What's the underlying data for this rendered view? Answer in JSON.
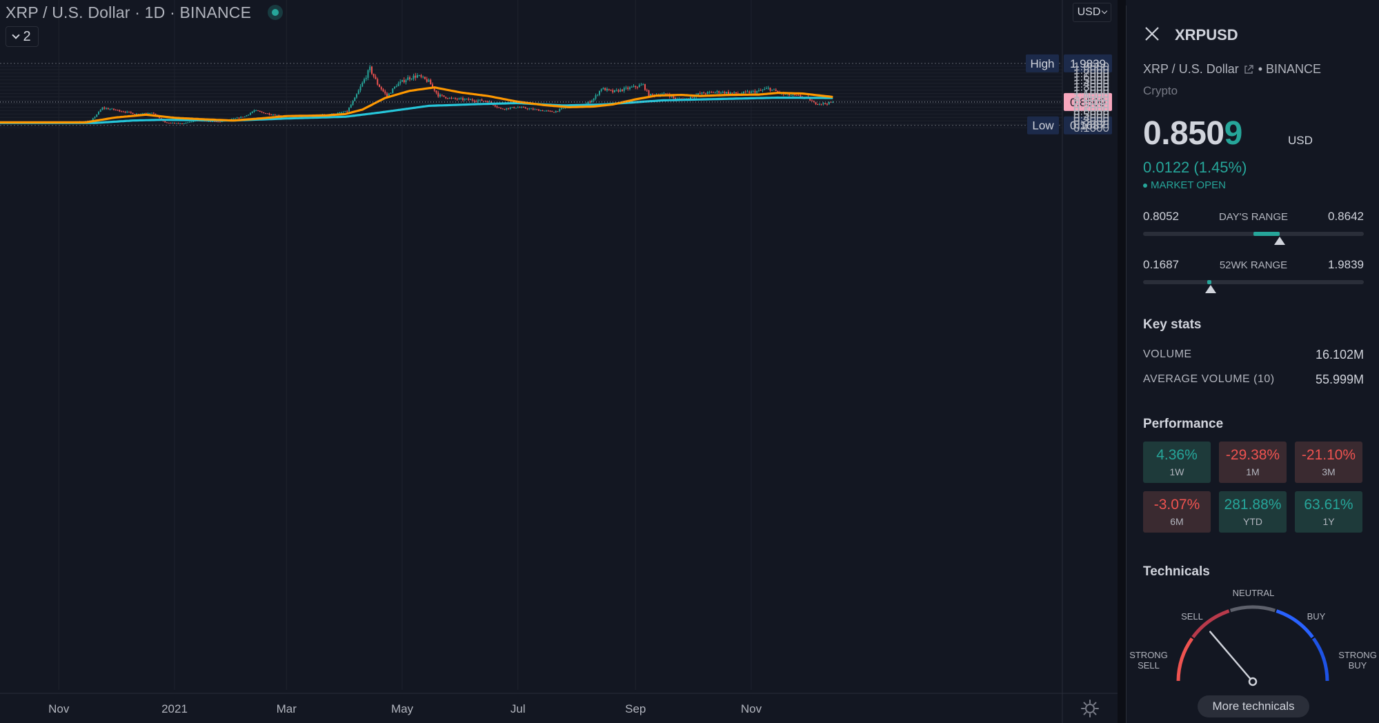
{
  "chart_header": {
    "title": "XRP / U.S. Dollar · 1D · BINANCE",
    "indicator_count": "2",
    "currency": "USD",
    "status_color": "#26a69a"
  },
  "colors": {
    "up": "#26a69a",
    "down": "#ef5350",
    "ma_fast": "#ff9800",
    "ma_slow": "#26c6da",
    "grid": "#1e222d",
    "background": "#131722"
  },
  "chart_data": {
    "type": "candlestick",
    "symbol": "XRPUSD",
    "interval": "1D",
    "y_axis": {
      "min": 0.1,
      "max": 1.9,
      "step": 0.1,
      "ticks": [
        "1.9000",
        "1.8000",
        "1.7000",
        "1.6000",
        "1.5000",
        "1.4000",
        "1.3000",
        "1.2000",
        "1.1000",
        "1.0000",
        "0.9000",
        "0.8000",
        "0.7000",
        "0.6000",
        "0.5000",
        "0.4000",
        "0.3000",
        "0.2000",
        "0.1000"
      ]
    },
    "x_axis": {
      "ticks": [
        {
          "label": "Nov",
          "date": "2020-11-01"
        },
        {
          "label": "2021",
          "date": "2021-01-01"
        },
        {
          "label": "Mar",
          "date": "2021-03-01"
        },
        {
          "label": "May",
          "date": "2021-05-01"
        },
        {
          "label": "Jul",
          "date": "2021-07-01"
        },
        {
          "label": "Sep",
          "date": "2021-09-01"
        },
        {
          "label": "Nov",
          "date": "2021-11-01"
        }
      ]
    },
    "high": {
      "label": "High",
      "value": "1.9839"
    },
    "low": {
      "label": "Low",
      "value": "0.1687"
    },
    "last": {
      "value": "0.8509"
    },
    "price_anchors": [
      {
        "date": "2020-10-01",
        "close": 0.245
      },
      {
        "date": "2020-10-20",
        "close": 0.25
      },
      {
        "date": "2020-11-05",
        "close": 0.26
      },
      {
        "date": "2020-11-18",
        "close": 0.3
      },
      {
        "date": "2020-11-24",
        "close": 0.68
      },
      {
        "date": "2020-12-01",
        "close": 0.62
      },
      {
        "date": "2020-12-12",
        "close": 0.5
      },
      {
        "date": "2020-12-20",
        "close": 0.55
      },
      {
        "date": "2020-12-27",
        "close": 0.25
      },
      {
        "date": "2021-01-05",
        "close": 0.22
      },
      {
        "date": "2021-01-12",
        "close": 0.3
      },
      {
        "date": "2021-01-25",
        "close": 0.27
      },
      {
        "date": "2021-02-01",
        "close": 0.36
      },
      {
        "date": "2021-02-07",
        "close": 0.43
      },
      {
        "date": "2021-02-12",
        "close": 0.6
      },
      {
        "date": "2021-02-20",
        "close": 0.5
      },
      {
        "date": "2021-02-28",
        "close": 0.43
      },
      {
        "date": "2021-03-15",
        "close": 0.45
      },
      {
        "date": "2021-03-28",
        "close": 0.52
      },
      {
        "date": "2021-04-02",
        "close": 0.58
      },
      {
        "date": "2021-04-06",
        "close": 0.95
      },
      {
        "date": "2021-04-10",
        "close": 1.4
      },
      {
        "date": "2021-04-14",
        "close": 1.83
      },
      {
        "date": "2021-04-18",
        "close": 1.38
      },
      {
        "date": "2021-04-23",
        "close": 1.02
      },
      {
        "date": "2021-04-28",
        "close": 1.35
      },
      {
        "date": "2021-05-04",
        "close": 1.55
      },
      {
        "date": "2021-05-09",
        "close": 1.62
      },
      {
        "date": "2021-05-15",
        "close": 1.45
      },
      {
        "date": "2021-05-20",
        "close": 1.05
      },
      {
        "date": "2021-05-27",
        "close": 0.95
      },
      {
        "date": "2021-06-05",
        "close": 0.92
      },
      {
        "date": "2021-06-15",
        "close": 0.88
      },
      {
        "date": "2021-06-22",
        "close": 0.65
      },
      {
        "date": "2021-07-01",
        "close": 0.7
      },
      {
        "date": "2021-07-10",
        "close": 0.63
      },
      {
        "date": "2021-07-20",
        "close": 0.56
      },
      {
        "date": "2021-07-28",
        "close": 0.73
      },
      {
        "date": "2021-08-05",
        "close": 0.76
      },
      {
        "date": "2021-08-10",
        "close": 0.95
      },
      {
        "date": "2021-08-14",
        "close": 1.25
      },
      {
        "date": "2021-08-20",
        "close": 1.15
      },
      {
        "date": "2021-08-28",
        "close": 1.25
      },
      {
        "date": "2021-09-05",
        "close": 1.35
      },
      {
        "date": "2021-09-08",
        "close": 1.05
      },
      {
        "date": "2021-09-18",
        "close": 1.08
      },
      {
        "date": "2021-09-22",
        "close": 0.93
      },
      {
        "date": "2021-09-28",
        "close": 0.95
      },
      {
        "date": "2021-10-05",
        "close": 1.1
      },
      {
        "date": "2021-10-15",
        "close": 1.15
      },
      {
        "date": "2021-10-25",
        "close": 1.1
      },
      {
        "date": "2021-11-05",
        "close": 1.17
      },
      {
        "date": "2021-11-10",
        "close": 1.25
      },
      {
        "date": "2021-11-18",
        "close": 1.08
      },
      {
        "date": "2021-11-26",
        "close": 1.02
      },
      {
        "date": "2021-12-01",
        "close": 0.96
      },
      {
        "date": "2021-12-04",
        "close": 0.82
      },
      {
        "date": "2021-12-10",
        "close": 0.8
      },
      {
        "date": "2021-12-14",
        "close": 0.8509
      }
    ],
    "ma_fast_anchors": [
      {
        "date": "2020-10-01",
        "value": 0.255
      },
      {
        "date": "2020-11-15",
        "value": 0.255
      },
      {
        "date": "2020-12-01",
        "value": 0.4
      },
      {
        "date": "2020-12-17",
        "value": 0.48
      },
      {
        "date": "2021-01-01",
        "value": 0.39
      },
      {
        "date": "2021-01-15",
        "value": 0.35
      },
      {
        "date": "2021-02-01",
        "value": 0.31
      },
      {
        "date": "2021-02-15",
        "value": 0.37
      },
      {
        "date": "2021-03-01",
        "value": 0.44
      },
      {
        "date": "2021-03-22",
        "value": 0.46
      },
      {
        "date": "2021-04-01",
        "value": 0.5
      },
      {
        "date": "2021-04-10",
        "value": 0.63
      },
      {
        "date": "2021-04-22",
        "value": 0.97
      },
      {
        "date": "2021-05-05",
        "value": 1.18
      },
      {
        "date": "2021-05-18",
        "value": 1.28
      },
      {
        "date": "2021-06-01",
        "value": 1.13
      },
      {
        "date": "2021-06-15",
        "value": 1.03
      },
      {
        "date": "2021-07-01",
        "value": 0.86
      },
      {
        "date": "2021-07-15",
        "value": 0.76
      },
      {
        "date": "2021-07-28",
        "value": 0.7
      },
      {
        "date": "2021-08-10",
        "value": 0.72
      },
      {
        "date": "2021-08-20",
        "value": 0.78
      },
      {
        "date": "2021-09-01",
        "value": 0.93
      },
      {
        "date": "2021-09-12",
        "value": 1.04
      },
      {
        "date": "2021-09-25",
        "value": 1.06
      },
      {
        "date": "2021-10-05",
        "value": 1.03
      },
      {
        "date": "2021-10-20",
        "value": 1.06
      },
      {
        "date": "2021-11-05",
        "value": 1.07
      },
      {
        "date": "2021-11-15",
        "value": 1.12
      },
      {
        "date": "2021-11-28",
        "value": 1.1
      },
      {
        "date": "2021-12-14",
        "value": 1.0
      }
    ],
    "ma_slow_anchors": [
      {
        "date": "2020-10-01",
        "value": 0.24
      },
      {
        "date": "2020-11-20",
        "value": 0.24
      },
      {
        "date": "2020-12-10",
        "value": 0.31
      },
      {
        "date": "2020-12-25",
        "value": 0.33
      },
      {
        "date": "2021-02-01",
        "value": 0.31
      },
      {
        "date": "2021-03-01",
        "value": 0.37
      },
      {
        "date": "2021-04-01",
        "value": 0.42
      },
      {
        "date": "2021-04-20",
        "value": 0.55
      },
      {
        "date": "2021-05-15",
        "value": 0.74
      },
      {
        "date": "2021-06-10",
        "value": 0.79
      },
      {
        "date": "2021-07-01",
        "value": 0.82
      },
      {
        "date": "2021-07-25",
        "value": 0.75
      },
      {
        "date": "2021-08-15",
        "value": 0.78
      },
      {
        "date": "2021-09-15",
        "value": 0.9
      },
      {
        "date": "2021-10-15",
        "value": 0.94
      },
      {
        "date": "2021-11-15",
        "value": 0.98
      },
      {
        "date": "2021-12-14",
        "value": 0.97
      }
    ]
  },
  "panel": {
    "symbol": "XRPUSD",
    "description": "XRP / U.S. Dollar",
    "exchange": "• BINANCE",
    "type": "Crypto",
    "price_main": "0.850",
    "price_last_digit": "9",
    "price_unit": "USD",
    "change": "0.0122 (1.45%)",
    "market_status": "MARKET OPEN",
    "days_range": {
      "label": "DAY'S RANGE",
      "low": "0.8052",
      "high": "0.8642",
      "fill_from": 0.5,
      "fill_to": 0.62,
      "current": 0.62
    },
    "wk52_range": {
      "label": "52WK RANGE",
      "low": "0.1687",
      "high": "1.9839",
      "fill_from": 0.29,
      "fill_to": 0.31,
      "current": 0.307
    },
    "key_stats": {
      "title": "Key stats",
      "rows": [
        {
          "label": "VOLUME",
          "value": "16.102M"
        },
        {
          "label": "AVERAGE VOLUME (10)",
          "value": "55.999M"
        }
      ]
    },
    "performance": {
      "title": "Performance",
      "cells": [
        {
          "value": "4.36%",
          "label": "1W",
          "sign": "pos"
        },
        {
          "value": "-29.38%",
          "label": "1M",
          "sign": "neg"
        },
        {
          "value": "-21.10%",
          "label": "3M",
          "sign": "neg"
        },
        {
          "value": "-3.07%",
          "label": "6M",
          "sign": "neg"
        },
        {
          "value": "281.88%",
          "label": "YTD",
          "sign": "pos"
        },
        {
          "value": "63.61%",
          "label": "1Y",
          "sign": "pos"
        }
      ]
    },
    "technicals": {
      "title": "Technicals",
      "labels": {
        "strong_sell": "STRONG SELL",
        "sell": "SELL",
        "neutral": "NEUTRAL",
        "buy": "BUY",
        "strong_buy": "STRONG BUY"
      },
      "needle_value": -0.45,
      "more_button": "More technicals"
    }
  }
}
